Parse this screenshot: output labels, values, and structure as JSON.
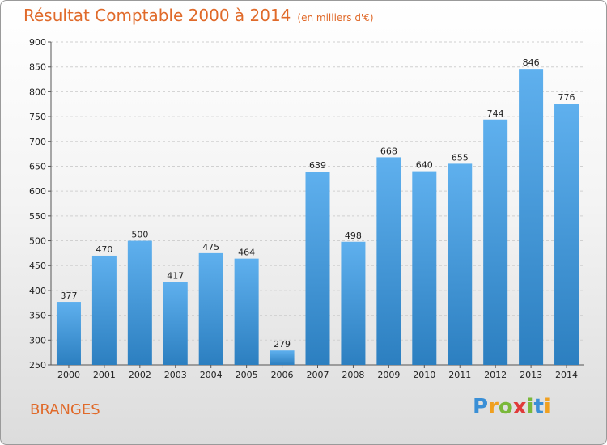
{
  "header": {
    "title": "Résultat Comptable 2000 à 2014",
    "subtitle": "(en milliers d'€)"
  },
  "footer": {
    "place": "BRANGES",
    "logo_letters": [
      {
        "ch": "P",
        "color": "#3a8fd6"
      },
      {
        "ch": "r",
        "color": "#f0a020"
      },
      {
        "ch": "o",
        "color": "#7ab83a"
      },
      {
        "ch": "x",
        "color": "#e03a3a"
      },
      {
        "ch": "i",
        "color": "#7ab83a"
      },
      {
        "ch": "t",
        "color": "#3a8fd6"
      },
      {
        "ch": "i",
        "color": "#f0a020"
      }
    ]
  },
  "chart_data": {
    "type": "bar",
    "title": "Résultat Comptable 2000 à 2014",
    "subtitle": "(en milliers d'€)",
    "categories": [
      "2000",
      "2001",
      "2002",
      "2003",
      "2004",
      "2005",
      "2006",
      "2007",
      "2008",
      "2009",
      "2010",
      "2011",
      "2012",
      "2013",
      "2014"
    ],
    "values": [
      377,
      470,
      500,
      417,
      475,
      464,
      279,
      639,
      498,
      668,
      640,
      655,
      744,
      846,
      776
    ],
    "ylim": [
      250,
      900
    ],
    "yticks": [
      250,
      300,
      350,
      400,
      450,
      500,
      550,
      600,
      650,
      700,
      750,
      800,
      850,
      900
    ],
    "grid": true,
    "bar_color_top": "#5fb0ee",
    "bar_color_bottom": "#2c7fc0"
  }
}
